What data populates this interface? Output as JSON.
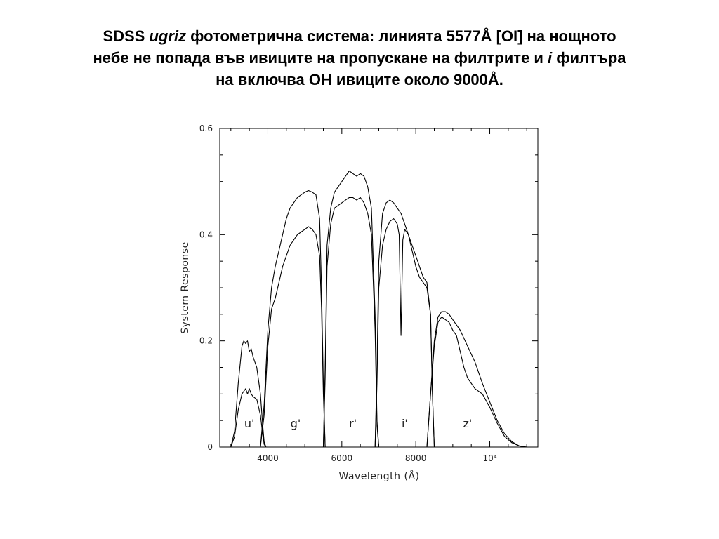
{
  "slide": {
    "title_line1_a": "SDSS ",
    "title_line1_b": "ugriz",
    "title_line1_c": " фотометрична система: линията 5577Å [OI] на нощното",
    "title_line2_a": "небе не попада във ивиците на пропускане на филтрите и ",
    "title_line2_b": "i",
    "title_line2_c": " филтъра",
    "title_line3": "на включва OH ивиците около 9000Å."
  },
  "chart_data": {
    "type": "line",
    "title": "",
    "xlabel": "Wavelength (Å)",
    "ylabel": "System Response",
    "xlim": [
      2700,
      11300
    ],
    "ylim": [
      0,
      0.6
    ],
    "x_ticks": [
      {
        "value": 4000,
        "label": "4000"
      },
      {
        "value": 6000,
        "label": "6000"
      },
      {
        "value": 8000,
        "label": "8000"
      },
      {
        "value": 10000,
        "label": "10⁴"
      }
    ],
    "y_ticks": [
      {
        "value": 0,
        "label": "0"
      },
      {
        "value": 0.2,
        "label": "0.2"
      },
      {
        "value": 0.4,
        "label": "0.4"
      },
      {
        "value": 0.6,
        "label": "0.6"
      }
    ],
    "grid": false,
    "band_labels": [
      {
        "label": "u'",
        "x": 3500,
        "y": 0.05
      },
      {
        "label": "g'",
        "x": 4750,
        "y": 0.05
      },
      {
        "label": "r'",
        "x": 6300,
        "y": 0.05
      },
      {
        "label": "i'",
        "x": 7700,
        "y": 0.05
      },
      {
        "label": "z'",
        "x": 9400,
        "y": 0.05
      }
    ],
    "series": [
      {
        "band": "u",
        "curve": "upper",
        "points": [
          [
            3000,
            0
          ],
          [
            3100,
            0.03
          ],
          [
            3200,
            0.12
          ],
          [
            3300,
            0.19
          ],
          [
            3350,
            0.2
          ],
          [
            3400,
            0.195
          ],
          [
            3450,
            0.2
          ],
          [
            3500,
            0.18
          ],
          [
            3550,
            0.185
          ],
          [
            3600,
            0.17
          ],
          [
            3700,
            0.15
          ],
          [
            3800,
            0.1
          ],
          [
            3850,
            0.05
          ],
          [
            3900,
            0.01
          ],
          [
            3950,
            0
          ]
        ]
      },
      {
        "band": "u",
        "curve": "lower",
        "points": [
          [
            3000,
            0
          ],
          [
            3100,
            0.02
          ],
          [
            3200,
            0.07
          ],
          [
            3300,
            0.1
          ],
          [
            3350,
            0.105
          ],
          [
            3400,
            0.11
          ],
          [
            3450,
            0.1
          ],
          [
            3500,
            0.11
          ],
          [
            3550,
            0.1
          ],
          [
            3600,
            0.095
          ],
          [
            3700,
            0.09
          ],
          [
            3800,
            0.06
          ],
          [
            3850,
            0.03
          ],
          [
            3900,
            0.005
          ],
          [
            3950,
            0
          ]
        ]
      },
      {
        "band": "g",
        "curve": "upper",
        "points": [
          [
            3800,
            0
          ],
          [
            3900,
            0.08
          ],
          [
            4000,
            0.22
          ],
          [
            4100,
            0.3
          ],
          [
            4200,
            0.34
          ],
          [
            4300,
            0.37
          ],
          [
            4400,
            0.4
          ],
          [
            4500,
            0.43
          ],
          [
            4600,
            0.45
          ],
          [
            4700,
            0.46
          ],
          [
            4800,
            0.47
          ],
          [
            4900,
            0.475
          ],
          [
            5000,
            0.48
          ],
          [
            5100,
            0.483
          ],
          [
            5200,
            0.48
          ],
          [
            5300,
            0.475
          ],
          [
            5400,
            0.43
          ],
          [
            5450,
            0.3
          ],
          [
            5500,
            0.12
          ],
          [
            5550,
            0
          ]
        ]
      },
      {
        "band": "g",
        "curve": "lower",
        "points": [
          [
            3800,
            0
          ],
          [
            3900,
            0.06
          ],
          [
            4000,
            0.19
          ],
          [
            4100,
            0.26
          ],
          [
            4200,
            0.28
          ],
          [
            4300,
            0.31
          ],
          [
            4400,
            0.34
          ],
          [
            4500,
            0.36
          ],
          [
            4600,
            0.38
          ],
          [
            4700,
            0.39
          ],
          [
            4800,
            0.4
          ],
          [
            4900,
            0.405
          ],
          [
            5000,
            0.41
          ],
          [
            5100,
            0.415
          ],
          [
            5200,
            0.41
          ],
          [
            5300,
            0.4
          ],
          [
            5400,
            0.36
          ],
          [
            5450,
            0.26
          ],
          [
            5500,
            0.1
          ],
          [
            5550,
            0
          ]
        ]
      },
      {
        "band": "r",
        "curve": "upper",
        "points": [
          [
            5500,
            0
          ],
          [
            5550,
            0.15
          ],
          [
            5600,
            0.38
          ],
          [
            5700,
            0.45
          ],
          [
            5800,
            0.48
          ],
          [
            5900,
            0.49
          ],
          [
            6000,
            0.5
          ],
          [
            6100,
            0.51
          ],
          [
            6200,
            0.52
          ],
          [
            6300,
            0.515
          ],
          [
            6400,
            0.51
          ],
          [
            6500,
            0.515
          ],
          [
            6600,
            0.51
          ],
          [
            6700,
            0.49
          ],
          [
            6800,
            0.45
          ],
          [
            6900,
            0.25
          ],
          [
            6950,
            0.05
          ],
          [
            7000,
            0
          ]
        ]
      },
      {
        "band": "r",
        "curve": "lower",
        "points": [
          [
            5500,
            0
          ],
          [
            5550,
            0.13
          ],
          [
            5600,
            0.34
          ],
          [
            5700,
            0.42
          ],
          [
            5800,
            0.45
          ],
          [
            5900,
            0.455
          ],
          [
            6000,
            0.46
          ],
          [
            6100,
            0.465
          ],
          [
            6200,
            0.47
          ],
          [
            6300,
            0.47
          ],
          [
            6400,
            0.465
          ],
          [
            6500,
            0.47
          ],
          [
            6600,
            0.46
          ],
          [
            6700,
            0.44
          ],
          [
            6800,
            0.4
          ],
          [
            6900,
            0.22
          ],
          [
            6950,
            0.04
          ],
          [
            7000,
            0
          ]
        ]
      },
      {
        "band": "i",
        "curve": "upper",
        "points": [
          [
            6900,
            0
          ],
          [
            6950,
            0.15
          ],
          [
            7000,
            0.35
          ],
          [
            7100,
            0.44
          ],
          [
            7200,
            0.46
          ],
          [
            7300,
            0.465
          ],
          [
            7400,
            0.46
          ],
          [
            7500,
            0.45
          ],
          [
            7600,
            0.44
          ],
          [
            7700,
            0.42
          ],
          [
            7800,
            0.4
          ],
          [
            7900,
            0.38
          ],
          [
            8000,
            0.36
          ],
          [
            8100,
            0.34
          ],
          [
            8200,
            0.32
          ],
          [
            8300,
            0.31
          ],
          [
            8400,
            0.25
          ],
          [
            8450,
            0.1
          ],
          [
            8500,
            0
          ]
        ]
      },
      {
        "band": "i",
        "curve": "lower",
        "points": [
          [
            6900,
            0
          ],
          [
            6950,
            0.12
          ],
          [
            7000,
            0.3
          ],
          [
            7100,
            0.38
          ],
          [
            7200,
            0.41
          ],
          [
            7300,
            0.425
          ],
          [
            7400,
            0.43
          ],
          [
            7500,
            0.42
          ],
          [
            7550,
            0.4
          ],
          [
            7600,
            0.21
          ],
          [
            7650,
            0.39
          ],
          [
            7700,
            0.41
          ],
          [
            7800,
            0.4
          ],
          [
            7900,
            0.37
          ],
          [
            8000,
            0.34
          ],
          [
            8100,
            0.32
          ],
          [
            8200,
            0.31
          ],
          [
            8300,
            0.3
          ],
          [
            8400,
            0.25
          ],
          [
            8450,
            0.1
          ],
          [
            8500,
            0
          ]
        ]
      },
      {
        "band": "z",
        "curve": "upper",
        "points": [
          [
            8300,
            0
          ],
          [
            8400,
            0.1
          ],
          [
            8500,
            0.2
          ],
          [
            8600,
            0.245
          ],
          [
            8700,
            0.255
          ],
          [
            8800,
            0.255
          ],
          [
            8900,
            0.25
          ],
          [
            9000,
            0.24
          ],
          [
            9200,
            0.22
          ],
          [
            9400,
            0.19
          ],
          [
            9600,
            0.16
          ],
          [
            9800,
            0.12
          ],
          [
            10000,
            0.085
          ],
          [
            10200,
            0.05
          ],
          [
            10400,
            0.025
          ],
          [
            10600,
            0.01
          ],
          [
            10800,
            0.002
          ],
          [
            11000,
            0
          ]
        ]
      },
      {
        "band": "z",
        "curve": "lower",
        "points": [
          [
            8300,
            0
          ],
          [
            8400,
            0.1
          ],
          [
            8500,
            0.19
          ],
          [
            8600,
            0.235
          ],
          [
            8700,
            0.245
          ],
          [
            8800,
            0.24
          ],
          [
            8900,
            0.235
          ],
          [
            9000,
            0.22
          ],
          [
            9100,
            0.21
          ],
          [
            9200,
            0.18
          ],
          [
            9300,
            0.15
          ],
          [
            9400,
            0.13
          ],
          [
            9500,
            0.12
          ],
          [
            9600,
            0.11
          ],
          [
            9800,
            0.1
          ],
          [
            10000,
            0.075
          ],
          [
            10200,
            0.045
          ],
          [
            10400,
            0.02
          ],
          [
            10600,
            0.008
          ],
          [
            10800,
            0.002
          ],
          [
            11000,
            0
          ]
        ]
      }
    ]
  }
}
